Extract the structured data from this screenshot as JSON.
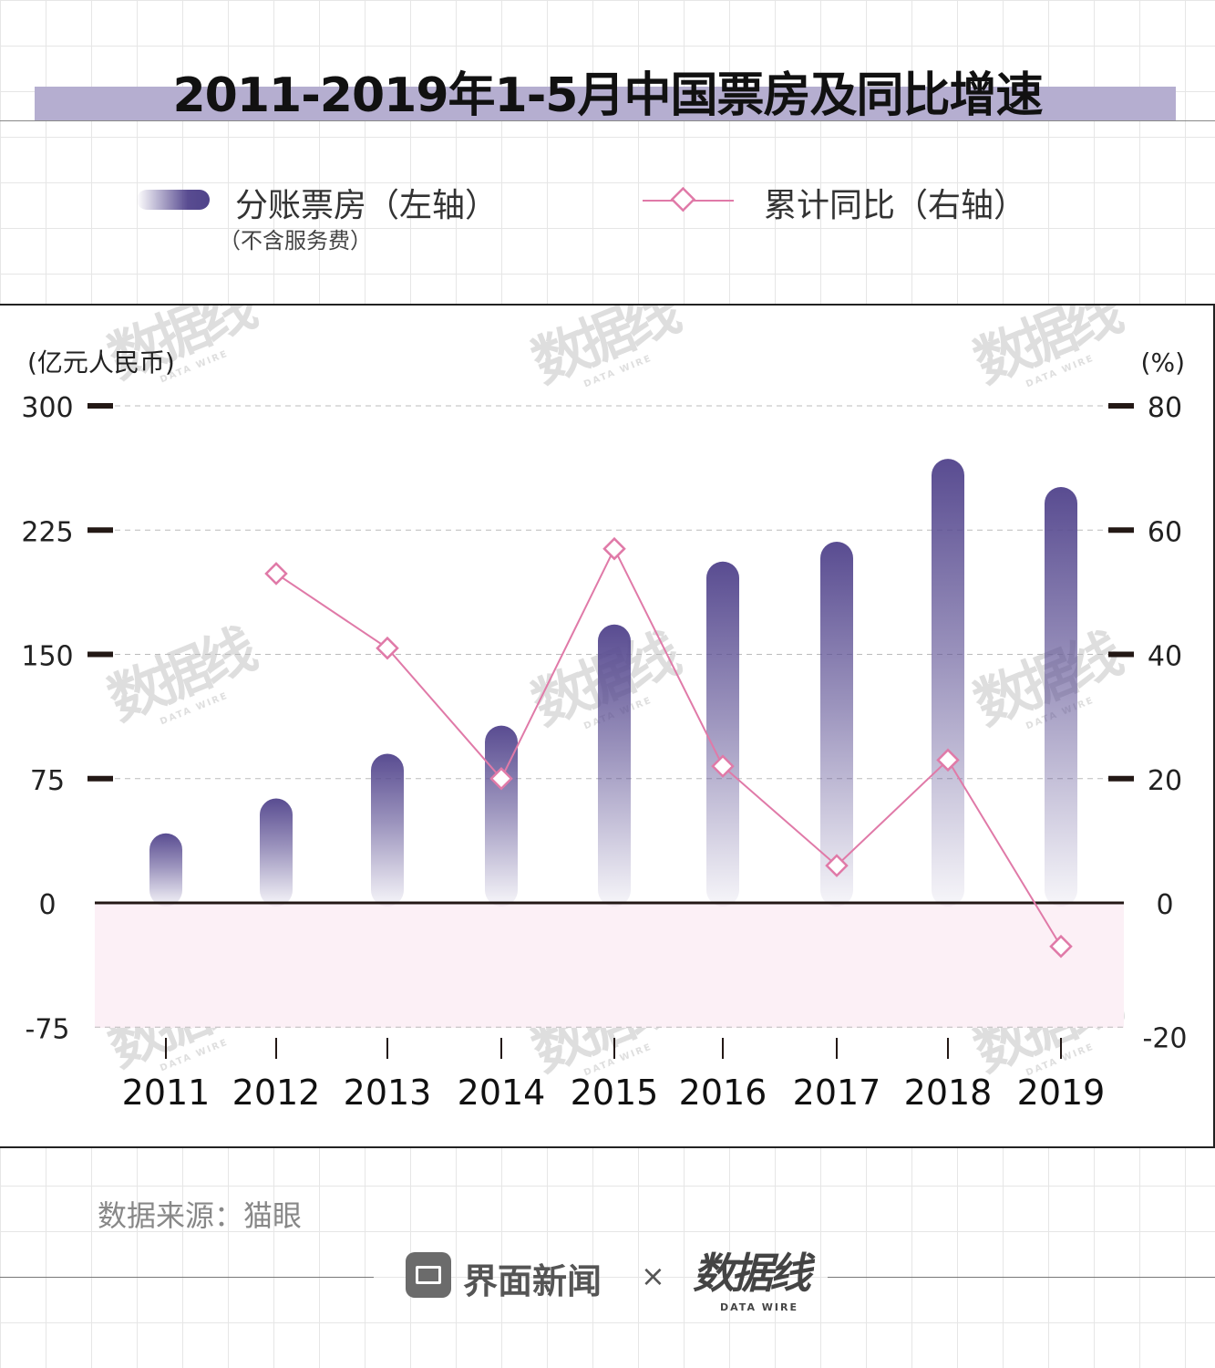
{
  "header": {
    "title": "2011-2019年1-5月中国票房及同比增速"
  },
  "legend": {
    "bar_label": "分账票房（左轴）",
    "bar_sublabel": "（不含服务费）",
    "line_label": "累计同比（右轴）"
  },
  "colors": {
    "bar": "#594c91",
    "line": "#e07aa8",
    "negative_band": "#fcf0f6",
    "title_band": "#b5aed0"
  },
  "chart_data": {
    "type": "bar",
    "categories": [
      "2011",
      "2012",
      "2013",
      "2014",
      "2015",
      "2016",
      "2017",
      "2018",
      "2019"
    ],
    "series": [
      {
        "name": "分账票房（左轴）",
        "type": "bar",
        "axis": "left",
        "values": [
          42,
          63,
          90,
          107,
          168,
          206,
          218,
          268,
          251
        ]
      },
      {
        "name": "累计同比（右轴）",
        "type": "line",
        "axis": "right",
        "values": [
          null,
          53,
          41,
          20,
          57,
          22,
          6,
          23,
          -7
        ]
      }
    ],
    "left_axis": {
      "label": "(亿元人民币)",
      "range": [
        -75,
        300
      ],
      "ticks": [
        "300",
        "225",
        "150",
        "75",
        "0",
        "-75"
      ]
    },
    "right_axis": {
      "label": "(%)",
      "range": [
        -20,
        80
      ],
      "ticks": [
        "80",
        "60",
        "40",
        "20",
        "0",
        "-20"
      ]
    },
    "grid": "dashed horizontal"
  },
  "watermark": {
    "text": "数据线",
    "subtext": "DATA WIRE"
  },
  "footer": {
    "source": "数据来源：猫眼",
    "brand": "界面新闻",
    "separator": "×",
    "partner": "数据线",
    "partner_sub": "DATA WIRE"
  }
}
